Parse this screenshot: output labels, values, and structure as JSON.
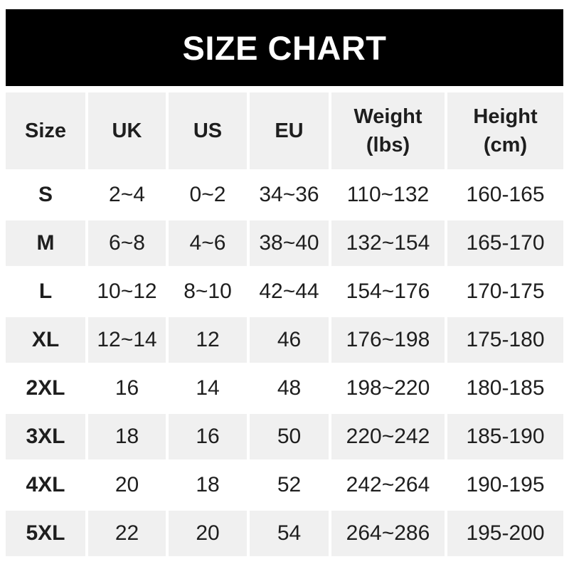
{
  "title": "SIZE CHART",
  "colors": {
    "banner_bg": "#000000",
    "banner_text": "#ffffff",
    "row_alt_bg": "#f0f0f0",
    "row_bg": "#ffffff",
    "text": "#1e1e1e"
  },
  "chart_data": {
    "type": "table",
    "title": "SIZE CHART",
    "columns": [
      {
        "line1": "Size",
        "line2": ""
      },
      {
        "line1": "UK",
        "line2": ""
      },
      {
        "line1": "US",
        "line2": ""
      },
      {
        "line1": "EU",
        "line2": ""
      },
      {
        "line1": "Weight",
        "line2": "(lbs)"
      },
      {
        "line1": "Height",
        "line2": "(cm)"
      }
    ],
    "rows": [
      {
        "cells": [
          "S",
          "2~4",
          "0~2",
          "34~36",
          "110~132",
          "160-165"
        ]
      },
      {
        "cells": [
          "M",
          "6~8",
          "4~6",
          "38~40",
          "132~154",
          "165-170"
        ]
      },
      {
        "cells": [
          "L",
          "10~12",
          "8~10",
          "42~44",
          "154~176",
          "170-175"
        ]
      },
      {
        "cells": [
          "XL",
          "12~14",
          "12",
          "46",
          "176~198",
          "175-180"
        ]
      },
      {
        "cells": [
          "2XL",
          "16",
          "14",
          "48",
          "198~220",
          "180-185"
        ]
      },
      {
        "cells": [
          "3XL",
          "18",
          "16",
          "50",
          "220~242",
          "185-190"
        ]
      },
      {
        "cells": [
          "4XL",
          "20",
          "18",
          "52",
          "242~264",
          "190-195"
        ]
      },
      {
        "cells": [
          "5XL",
          "22",
          "20",
          "54",
          "264~286",
          "195-200"
        ]
      }
    ]
  }
}
